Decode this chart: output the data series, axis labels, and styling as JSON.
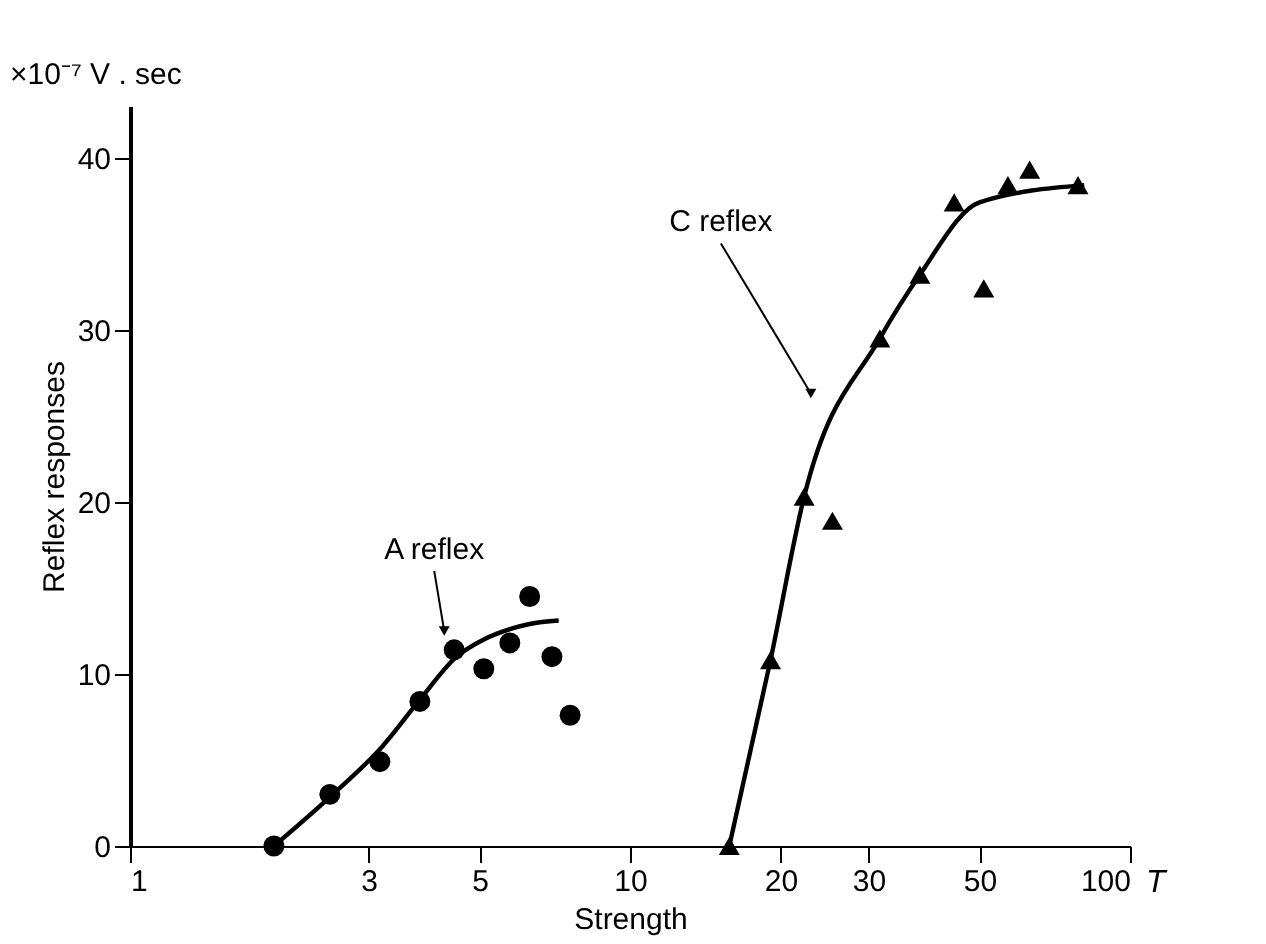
{
  "chart_data": {
    "type": "scatter",
    "xlabel": "Strength",
    "ylabel": "Reflex responses",
    "log": "x",
    "grid": false,
    "xlim": [
      1,
      100
    ],
    "xticks": [
      1,
      3,
      5,
      10,
      20,
      30,
      50,
      100
    ],
    "ylim": [
      0,
      43
    ],
    "yticks": [
      0,
      10,
      20,
      30,
      40
    ],
    "series": [
      {
        "type": "scatter",
        "marker": "circle",
        "color": "#000000",
        "x": [
          1.94,
          2.51,
          3.16,
          3.8,
          4.45,
          5.1,
          5.75,
          6.3,
          6.98,
          7.59
        ],
        "values": [
          0,
          3.0,
          4.9,
          8.4,
          11.4,
          10.3,
          11.8,
          14.5,
          11.0,
          7.6
        ]
      },
      {
        "type": "scatter",
        "marker": "triangle",
        "color": "#000000",
        "x": [
          15.8,
          19.1,
          22.3,
          25.4,
          31.6,
          38,
          44.5,
          51,
          57,
          63,
          78.7
        ],
        "values": [
          0,
          10.8,
          20.3,
          18.9,
          29.5,
          33.2,
          37.4,
          32.4,
          38.4,
          39.3,
          38.4
        ]
      },
      {
        "type": "line",
        "line_style": "solid",
        "marker": "none",
        "color": "#000000",
        "x": [
          1.94,
          2.5,
          3.2,
          3.8,
          4.5,
          5.1,
          5.75,
          6.3,
          7.2
        ],
        "values": [
          0,
          2.8,
          5.8,
          8.5,
          11,
          12,
          12.6,
          12.9,
          13.1
        ]
      },
      {
        "type": "line",
        "line_style": "solid",
        "marker": "none",
        "color": "#000000",
        "x": [
          15.8,
          19.1,
          22.3,
          31.6,
          38,
          50,
          81
        ],
        "values": [
          0,
          10.8,
          20.3,
          29.5,
          33.2,
          37.4,
          38.4
        ]
      }
    ],
    "annotations": [
      "×10⁻⁷ V . sec",
      "T",
      {
        "text": "A reflex",
        "x": 4.25,
        "y": 12.5
      },
      {
        "text": "C reflex",
        "x": 23,
        "y": 26.3
      }
    ]
  }
}
